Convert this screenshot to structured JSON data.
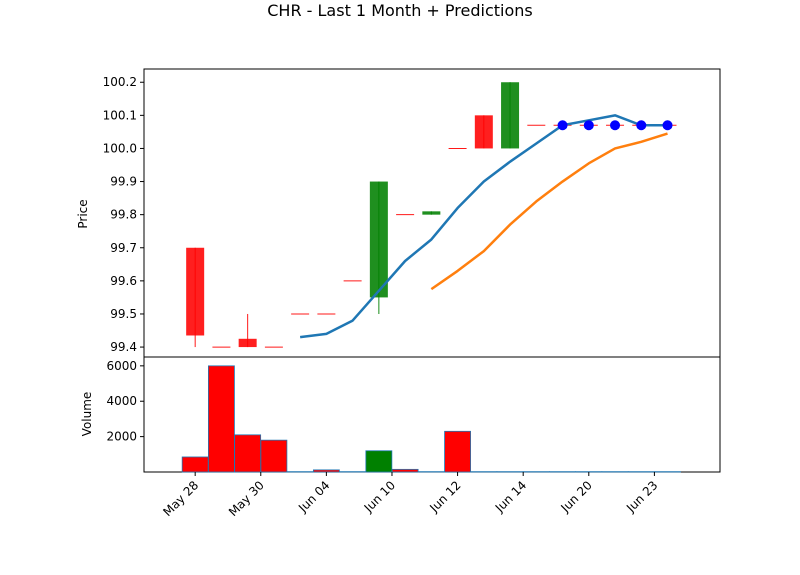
{
  "chart_data": {
    "type": "candlestick",
    "title": "CHR - Last 1 Month + Predictions",
    "price_panel": {
      "ylabel": "Price",
      "ylim": [
        99.37,
        100.24
      ],
      "yticks": [
        "99.4",
        "99.5",
        "99.6",
        "99.7",
        "99.8",
        "99.9",
        "100.0",
        "100.1",
        "100.2"
      ]
    },
    "volume_panel": {
      "ylabel": "Volume",
      "ylim": [
        0,
        6500
      ],
      "yticks": [
        "2000",
        "4000",
        "6000"
      ]
    },
    "x_tick_labels": [
      {
        "label": "May 28",
        "index": 0
      },
      {
        "label": "May 30",
        "index": 2.5
      },
      {
        "label": "Jun 04",
        "index": 5
      },
      {
        "label": "Jun 10",
        "index": 7.5
      },
      {
        "label": "Jun 12",
        "index": 10
      },
      {
        "label": "Jun 14",
        "index": 12.5
      },
      {
        "label": "Jun 20",
        "index": 15
      },
      {
        "label": "Jun 23",
        "index": 17.5
      }
    ],
    "candles": [
      {
        "i": 0,
        "open": 99.7,
        "close": 99.435,
        "high": 99.7,
        "low": 99.4,
        "volume": 850
      },
      {
        "i": 1,
        "open": 99.4,
        "close": 99.4,
        "high": 99.4,
        "low": 99.4,
        "volume": 6000
      },
      {
        "i": 2,
        "open": 99.425,
        "close": 99.4,
        "high": 99.5,
        "low": 99.4,
        "volume": 2100
      },
      {
        "i": 3,
        "open": 99.4,
        "close": 99.4,
        "high": 99.4,
        "low": 99.4,
        "volume": 1800
      },
      {
        "i": 4,
        "open": 99.5,
        "close": 99.5,
        "high": 99.5,
        "low": 99.5,
        "volume": 20
      },
      {
        "i": 5,
        "open": 99.5,
        "close": 99.5,
        "high": 99.5,
        "low": 99.5,
        "volume": 120
      },
      {
        "i": 6,
        "open": 99.6,
        "close": 99.6,
        "high": 99.6,
        "low": 99.6,
        "volume": 20
      },
      {
        "i": 7,
        "open": 99.55,
        "close": 99.9,
        "high": 99.9,
        "low": 99.5,
        "volume": 1200
      },
      {
        "i": 8,
        "open": 99.8,
        "close": 99.8,
        "high": 99.8,
        "low": 99.8,
        "volume": 150
      },
      {
        "i": 9,
        "open": 99.8,
        "close": 99.81,
        "high": 99.81,
        "low": 99.8,
        "volume": 20
      },
      {
        "i": 10,
        "open": 100.0,
        "close": 100.0,
        "high": 100.0,
        "low": 100.0,
        "volume": 2300
      },
      {
        "i": 11,
        "open": 100.1,
        "close": 100.0,
        "high": 100.1,
        "low": 100.0,
        "volume": 20
      },
      {
        "i": 12,
        "open": 100.0,
        "close": 100.2,
        "high": 100.2,
        "low": 100.0,
        "volume": 20
      },
      {
        "i": 13,
        "open": 100.07,
        "close": 100.07,
        "high": 100.07,
        "low": 100.07,
        "volume": 20
      },
      {
        "i": 14,
        "open": 100.07,
        "close": 100.07,
        "high": 100.07,
        "low": 100.07,
        "volume": 20
      },
      {
        "i": 15,
        "open": 100.07,
        "close": 100.07,
        "high": 100.07,
        "low": 100.07,
        "volume": 20
      },
      {
        "i": 16,
        "open": 100.07,
        "close": 100.07,
        "high": 100.07,
        "low": 100.07,
        "volume": 20
      },
      {
        "i": 17,
        "open": 100.07,
        "close": 100.07,
        "high": 100.07,
        "low": 100.07,
        "volume": 20
      },
      {
        "i": 18,
        "open": 100.07,
        "close": 100.07,
        "high": 100.07,
        "low": 100.07,
        "volume": 20
      }
    ],
    "lines": [
      {
        "color": "#1f77b4",
        "points": [
          {
            "i": 4,
            "y": 99.43
          },
          {
            "i": 5,
            "y": 99.44
          },
          {
            "i": 6,
            "y": 99.48
          },
          {
            "i": 7,
            "y": 99.57
          },
          {
            "i": 8,
            "y": 99.66
          },
          {
            "i": 9,
            "y": 99.725
          },
          {
            "i": 10,
            "y": 99.82
          },
          {
            "i": 11,
            "y": 99.9
          },
          {
            "i": 12,
            "y": 99.96
          },
          {
            "i": 13,
            "y": 100.015
          },
          {
            "i": 14,
            "y": 100.07
          },
          {
            "i": 15,
            "y": 100.085
          },
          {
            "i": 16,
            "y": 100.1
          },
          {
            "i": 17,
            "y": 100.07
          },
          {
            "i": 18,
            "y": 100.07
          }
        ]
      },
      {
        "color": "#ff7f0e",
        "points": [
          {
            "i": 9,
            "y": 99.575
          },
          {
            "i": 10,
            "y": 99.63
          },
          {
            "i": 11,
            "y": 99.69
          },
          {
            "i": 12,
            "y": 99.77
          },
          {
            "i": 13,
            "y": 99.84
          },
          {
            "i": 14,
            "y": 99.9
          },
          {
            "i": 15,
            "y": 99.955
          },
          {
            "i": 16,
            "y": 100.0
          },
          {
            "i": 17,
            "y": 100.02
          },
          {
            "i": 18,
            "y": 100.045
          }
        ]
      }
    ],
    "prediction_points": [
      {
        "i": 14,
        "y": 100.07
      },
      {
        "i": 15,
        "y": 100.07
      },
      {
        "i": 16,
        "y": 100.07
      },
      {
        "i": 17,
        "y": 100.07
      },
      {
        "i": 18,
        "y": 100.07
      }
    ],
    "colors": {
      "up": "#008000",
      "down": "#ff0000",
      "prediction": "#0000ff"
    },
    "x_range": [
      -1.95,
      20
    ]
  }
}
